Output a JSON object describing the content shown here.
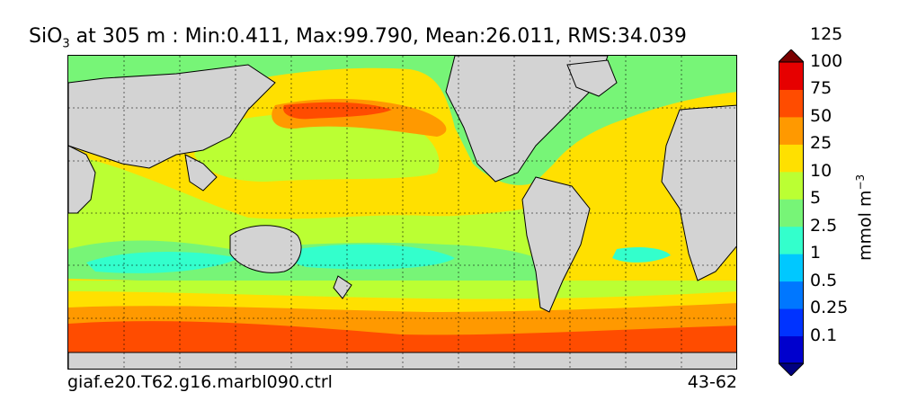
{
  "title": {
    "variable": "SiO",
    "subscript": "3",
    "text": " at 305 m : Min:0.411, Max:99.790, Mean:26.011, RMS:34.039"
  },
  "footer": {
    "case_name": "giaf.e20.T62.g16.marbl090.ctrl",
    "years": "43-62"
  },
  "colorbar": {
    "units_prefix": "mmol m",
    "units_exponent": "−3",
    "levels": [
      "0.1",
      "0.25",
      "0.5",
      "1",
      "2.5",
      "5",
      "10",
      "25",
      "50",
      "75",
      "100",
      "125"
    ],
    "colors": [
      "#000080",
      "#0000cd",
      "#0033ff",
      "#0077ff",
      "#00c8ff",
      "#33ffcc",
      "#77f577",
      "#bbff33",
      "#ffe000",
      "#ff9900",
      "#ff4c00",
      "#e60000",
      "#7a0000"
    ],
    "extend": "both"
  },
  "map": {
    "land_color": "#d3d3d3",
    "gridlines": "dotted"
  }
}
